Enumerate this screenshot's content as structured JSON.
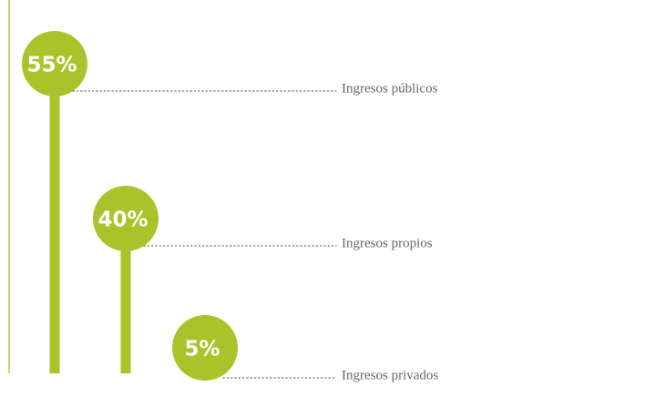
{
  "chart_data": {
    "type": "lollipop",
    "categories": [
      "Ingresos públicos",
      "Ingresos propios",
      "Ingresos privados"
    ],
    "values": [
      55,
      40,
      5
    ],
    "value_labels": [
      "55%",
      "40%",
      "5%"
    ],
    "color": "#abc32a"
  }
}
